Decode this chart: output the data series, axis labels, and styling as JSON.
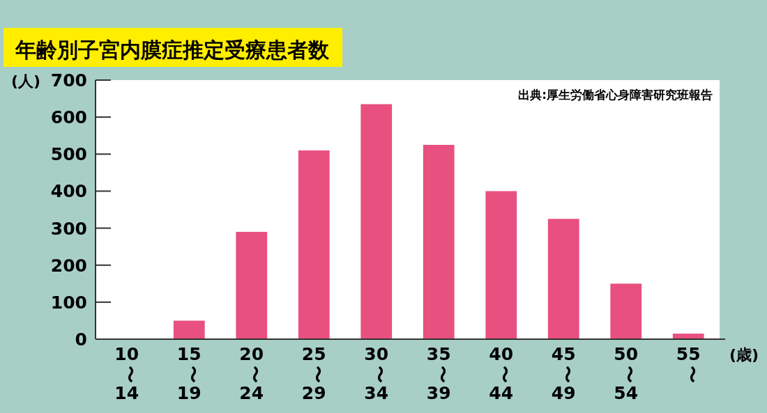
{
  "chart_data": {
    "type": "bar",
    "title": "年齢別子宮内膜症推定受療患者数",
    "categories": [
      "10〜14",
      "15〜19",
      "20〜24",
      "25〜29",
      "30〜34",
      "35〜39",
      "40〜44",
      "45〜49",
      "50〜54",
      "55〜"
    ],
    "values": [
      0,
      50,
      290,
      510,
      635,
      525,
      400,
      325,
      150,
      15
    ],
    "color": "#e8507f",
    "ylabel": "(人)",
    "xlabel": "(歳)",
    "annotations": [
      "出典:厚生労働省心身障害研究班報告"
    ],
    "ylim": [
      0,
      700
    ],
    "yticks": [
      0,
      100,
      200,
      300,
      400,
      500,
      600,
      700
    ],
    "grid": false
  }
}
